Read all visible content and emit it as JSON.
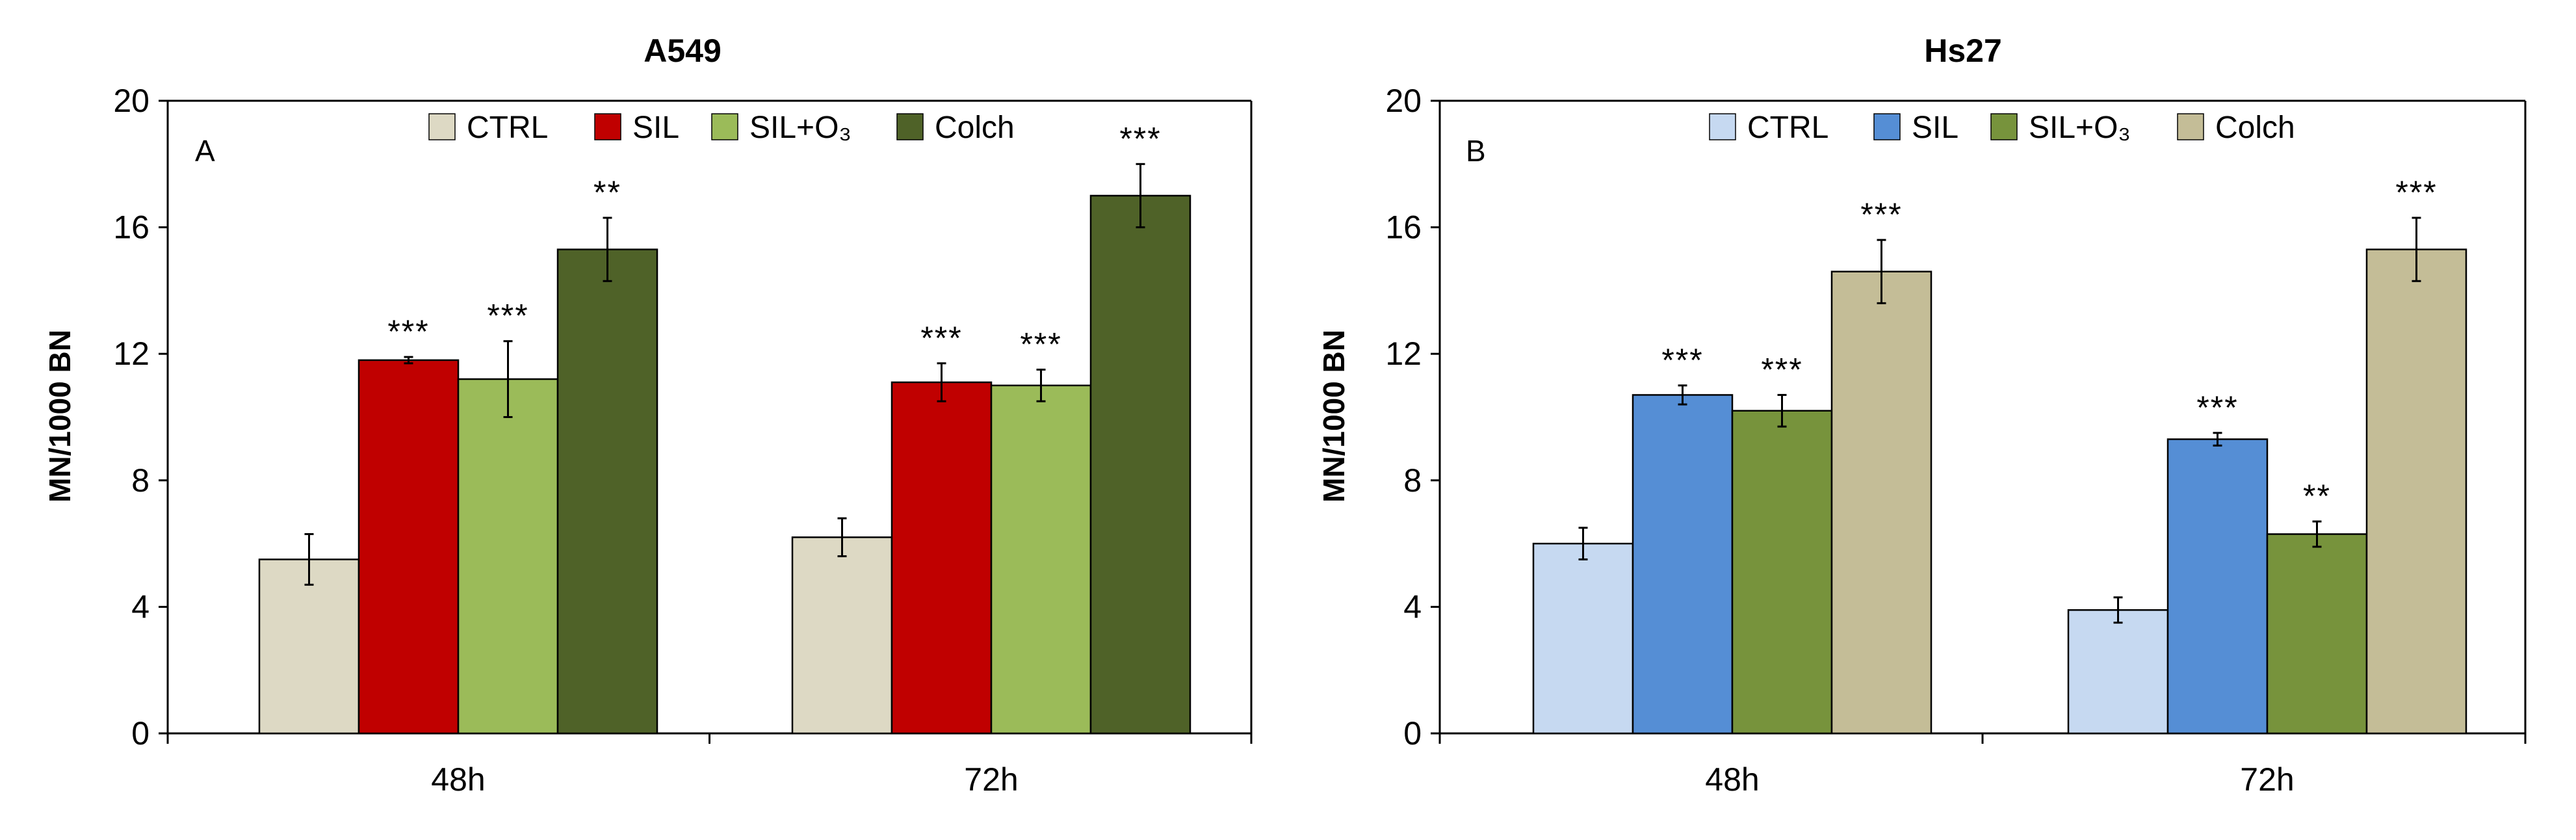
{
  "chart_data": [
    {
      "type": "bar",
      "panel_letter": "A",
      "title": "A549",
      "ylabel": "MN/1000 BN",
      "xlabel": "",
      "categories": [
        "48h",
        "72h"
      ],
      "ylim": [
        0,
        20
      ],
      "yticks": [
        "0",
        "4",
        "8",
        "12",
        "16",
        "20"
      ],
      "legend": [
        "CTRL",
        "SIL",
        "SIL+O₃",
        "Colch"
      ],
      "colors": [
        "#ddd9c4",
        "#c00000",
        "#9bbb59",
        "#4f6228"
      ],
      "series": [
        {
          "name": "CTRL",
          "values": [
            5.5,
            6.2
          ],
          "errors": [
            0.8,
            0.6
          ],
          "significance": [
            "",
            ""
          ]
        },
        {
          "name": "SIL",
          "values": [
            11.8,
            11.1
          ],
          "errors": [
            0.1,
            0.6
          ],
          "significance": [
            "***",
            "***"
          ]
        },
        {
          "name": "SIL+O₃",
          "values": [
            11.2,
            11.0
          ],
          "errors": [
            1.2,
            0.5
          ],
          "significance": [
            "***",
            "***"
          ]
        },
        {
          "name": "Colch",
          "values": [
            15.3,
            17.0
          ],
          "errors": [
            1.0,
            1.0
          ],
          "significance": [
            "**",
            "***"
          ]
        }
      ]
    },
    {
      "type": "bar",
      "panel_letter": "B",
      "title": "Hs27",
      "ylabel": "MN/1000 BN",
      "xlabel": "",
      "categories": [
        "48h",
        "72h"
      ],
      "ylim": [
        0,
        20
      ],
      "yticks": [
        "0",
        "4",
        "8",
        "12",
        "16",
        "20"
      ],
      "legend": [
        "CTRL",
        "SIL",
        "SIL+O₃",
        "Colch"
      ],
      "colors": [
        "#c6d9f1",
        "#558ed5",
        "#77933c",
        "#c4bd97"
      ],
      "series": [
        {
          "name": "CTRL",
          "values": [
            6.0,
            3.9
          ],
          "errors": [
            0.5,
            0.4
          ],
          "significance": [
            "",
            ""
          ]
        },
        {
          "name": "SIL",
          "values": [
            10.7,
            9.3
          ],
          "errors": [
            0.3,
            0.2
          ],
          "significance": [
            "***",
            "***"
          ]
        },
        {
          "name": "SIL+O₃",
          "values": [
            10.2,
            6.3
          ],
          "errors": [
            0.5,
            0.4
          ],
          "significance": [
            "***",
            "**"
          ]
        },
        {
          "name": "Colch",
          "values": [
            14.6,
            15.3
          ],
          "errors": [
            1.0,
            1.0
          ],
          "significance": [
            "***",
            "***"
          ]
        }
      ]
    }
  ]
}
